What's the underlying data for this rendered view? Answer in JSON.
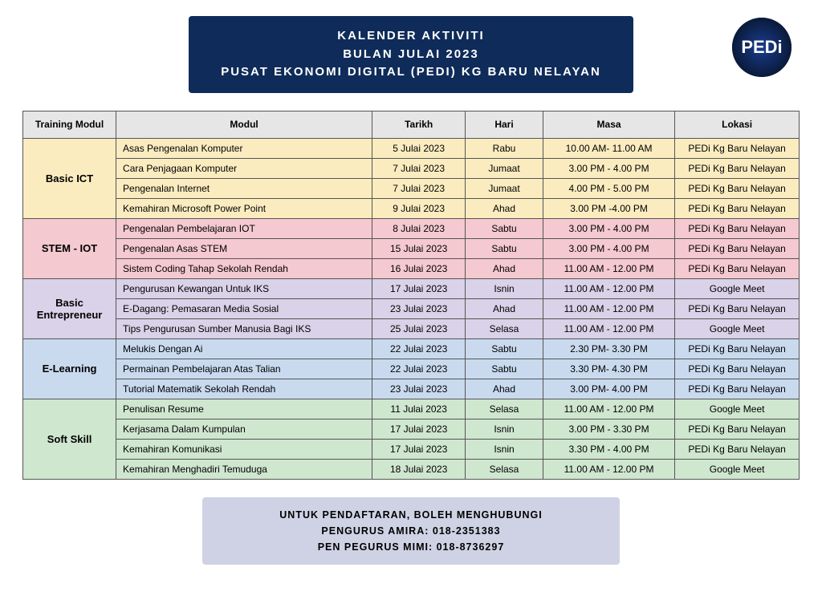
{
  "header": {
    "line1": "KALENDER AKTIVITI",
    "line2": "BULAN JULAI 2023",
    "line3": "PUSAT EKONOMI DIGITAL (PEDI) KG BARU NELAYAN",
    "logo_text": "PEDi"
  },
  "table": {
    "columns": [
      "Training Modul",
      "Modul",
      "Tarikh",
      "Hari",
      "Masa",
      "Lokasi"
    ],
    "col_widths": [
      "12%",
      "33%",
      "12%",
      "10%",
      "17%",
      "16%"
    ],
    "header_bg": "#e6e6e6",
    "groups": [
      {
        "category": "Basic ICT",
        "bg": "#fbecc0",
        "rows": [
          {
            "modul": "Asas Pengenalan Komputer",
            "tarikh": "5 Julai 2023",
            "hari": "Rabu",
            "masa": "10.00 AM- 11.00 AM",
            "lokasi": "PEDi Kg Baru Nelayan"
          },
          {
            "modul": "Cara Penjagaan Komputer",
            "tarikh": "7 Julai 2023",
            "hari": "Jumaat",
            "masa": "3.00 PM - 4.00 PM",
            "lokasi": "PEDi Kg Baru Nelayan"
          },
          {
            "modul": "Pengenalan Internet",
            "tarikh": "7 Julai 2023",
            "hari": "Jumaat",
            "masa": "4.00 PM - 5.00 PM",
            "lokasi": "PEDi Kg Baru Nelayan"
          },
          {
            "modul": "Kemahiran Microsoft Power Point",
            "tarikh": "9 Julai 2023",
            "hari": "Ahad",
            "masa": "3.00 PM -4.00 PM",
            "lokasi": "PEDi Kg Baru Nelayan"
          }
        ]
      },
      {
        "category": "STEM - IOT",
        "bg": "#f4c9cf",
        "rows": [
          {
            "modul": "Pengenalan Pembelajaran IOT",
            "tarikh": "8 Julai 2023",
            "hari": "Sabtu",
            "masa": "3.00 PM - 4.00 PM",
            "lokasi": "PEDi Kg Baru Nelayan"
          },
          {
            "modul": "Pengenalan Asas STEM",
            "tarikh": "15 Julai 2023",
            "hari": "Sabtu",
            "masa": "3.00 PM - 4.00 PM",
            "lokasi": "PEDi Kg Baru Nelayan"
          },
          {
            "modul": "Sistem Coding Tahap Sekolah Rendah",
            "tarikh": "16 Julai 2023",
            "hari": "Ahad",
            "masa": "11.00 AM - 12.00 PM",
            "lokasi": "PEDi Kg Baru Nelayan"
          }
        ]
      },
      {
        "category": "Basic Entrepreneur",
        "bg": "#d9d2e8",
        "rows": [
          {
            "modul": "Pengurusan Kewangan Untuk IKS",
            "tarikh": "17 Julai 2023",
            "hari": "Isnin",
            "masa": "11.00 AM - 12.00 PM",
            "lokasi": "Google Meet"
          },
          {
            "modul": "E-Dagang: Pemasaran Media Sosial",
            "tarikh": "23 Julai 2023",
            "hari": "Ahad",
            "masa": "11.00 AM - 12.00 PM",
            "lokasi": "PEDi Kg Baru Nelayan"
          },
          {
            "modul": "Tips Pengurusan Sumber Manusia Bagi IKS",
            "tarikh": "25 Julai 2023",
            "hari": "Selasa",
            "masa": "11.00 AM - 12.00 PM",
            "lokasi": "Google Meet"
          }
        ]
      },
      {
        "category": "E-Learning",
        "bg": "#c9daef",
        "rows": [
          {
            "modul": "Melukis Dengan Ai",
            "tarikh": "22 Julai 2023",
            "hari": "Sabtu",
            "masa": "2.30 PM- 3.30 PM",
            "lokasi": "PEDi Kg Baru Nelayan"
          },
          {
            "modul": "Permainan Pembelajaran Atas Talian",
            "tarikh": "22 Julai 2023",
            "hari": "Sabtu",
            "masa": "3.30 PM- 4.30 PM",
            "lokasi": "PEDi Kg Baru Nelayan"
          },
          {
            "modul": "Tutorial Matematik Sekolah Rendah",
            "tarikh": "23 Julai 2023",
            "hari": "Ahad",
            "masa": "3.00 PM- 4.00 PM",
            "lokasi": "PEDi Kg Baru Nelayan"
          }
        ]
      },
      {
        "category": "Soft Skill",
        "bg": "#cfe6cf",
        "rows": [
          {
            "modul": "Penulisan Resume",
            "tarikh": "11 Julai 2023",
            "hari": "Selasa",
            "masa": "11.00 AM - 12.00 PM",
            "lokasi": "Google Meet"
          },
          {
            "modul": "Kerjasama Dalam Kumpulan",
            "tarikh": "17 Julai 2023",
            "hari": "Isnin",
            "masa": "3.00 PM - 3.30 PM",
            "lokasi": "PEDi Kg Baru Nelayan"
          },
          {
            "modul": "Kemahiran Komunikasi",
            "tarikh": "17 Julai 2023",
            "hari": "Isnin",
            "masa": "3.30 PM - 4.00 PM",
            "lokasi": "PEDi Kg Baru Nelayan"
          },
          {
            "modul": "Kemahiran Menghadiri Temuduga",
            "tarikh": "18 Julai 2023",
            "hari": "Selasa",
            "masa": "11.00 AM - 12.00 PM",
            "lokasi": "Google Meet"
          }
        ]
      }
    ]
  },
  "footer": {
    "line1": "UNTUK PENDAFTARAN, BOLEH MENGHUBUNGI",
    "line2": "PENGURUS AMIRA: 018-2351383",
    "line3": "PEN PEGURUS MIMI: 018-8736297",
    "bg": "#cfd2e4"
  }
}
